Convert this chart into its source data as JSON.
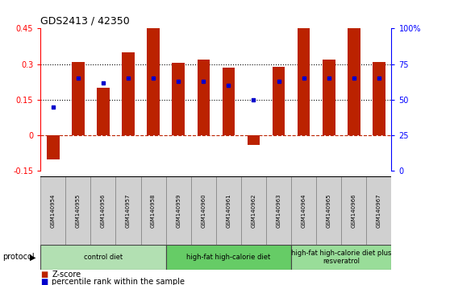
{
  "title": "GDS2413 / 42350",
  "samples": [
    "GSM140954",
    "GSM140955",
    "GSM140956",
    "GSM140957",
    "GSM140958",
    "GSM140959",
    "GSM140960",
    "GSM140961",
    "GSM140962",
    "GSM140963",
    "GSM140964",
    "GSM140965",
    "GSM140966",
    "GSM140967"
  ],
  "z_scores": [
    -0.1,
    0.31,
    0.2,
    0.35,
    0.45,
    0.305,
    0.32,
    0.285,
    -0.04,
    0.29,
    0.45,
    0.32,
    0.45,
    0.31
  ],
  "percentile_ranks": [
    45,
    65,
    62,
    65,
    65,
    63,
    63,
    60,
    50,
    63,
    65,
    65,
    65,
    65
  ],
  "bar_color": "#bb2200",
  "dot_color": "#0000cc",
  "ylim_left": [
    -0.15,
    0.45
  ],
  "ylim_right": [
    0,
    100
  ],
  "yticks_left": [
    -0.15,
    0,
    0.15,
    0.3,
    0.45
  ],
  "yticks_right": [
    0,
    25,
    50,
    75,
    100
  ],
  "ytick_labels_left": [
    "-0.15",
    "0",
    "0.15",
    "0.3",
    "0.45"
  ],
  "ytick_labels_right": [
    "0",
    "25",
    "50",
    "75",
    "100%"
  ],
  "hlines": [
    0.15,
    0.3
  ],
  "groups": [
    {
      "label": "control diet",
      "start": 0,
      "end": 5,
      "color": "#b2e0b2"
    },
    {
      "label": "high-fat high-calorie diet",
      "start": 5,
      "end": 10,
      "color": "#66cc66"
    },
    {
      "label": "high-fat high-calorie diet plus\nresveratrol",
      "start": 10,
      "end": 14,
      "color": "#99dd99"
    }
  ],
  "protocol_label": "protocol",
  "legend_zscore": "Z-score",
  "legend_prank": "percentile rank within the sample",
  "background_color": "#ffffff",
  "sample_bg_color": "#d0d0d0",
  "bar_width": 0.5
}
